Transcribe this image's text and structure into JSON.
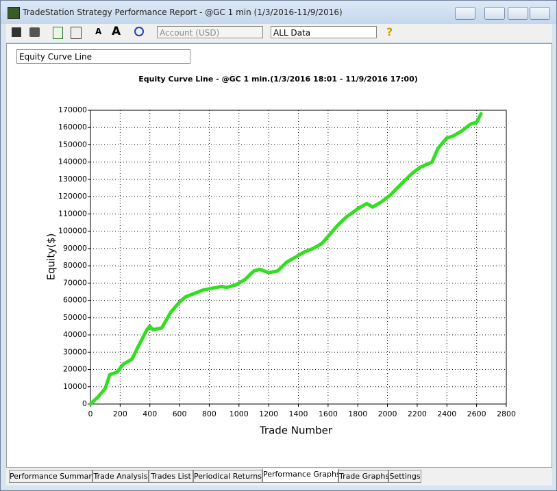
{
  "window": {
    "title": "TradeStation Strategy Performance Report - @GC 1 min (1/3/2016-11/9/2016)"
  },
  "toolbar": {
    "account": "Account (USD)",
    "range": "ALL Data"
  },
  "graph_selector": "Equity Curve Line",
  "tabs": [
    "Performance Summary",
    "Trade Analysis",
    "Trades List",
    "Periodical Returns",
    "Performance Graphs",
    "Trade Graphs",
    "Settings"
  ],
  "active_tab": 4,
  "chart_data": {
    "type": "line",
    "title": "Equity Curve Line - @GC 1 min.(1/3/2016 18:01 - 11/9/2016 17:00)",
    "x_label": "Trade Number",
    "y_label": "Equity($)",
    "x": [
      0,
      50,
      100,
      130,
      180,
      220,
      280,
      320,
      380,
      400,
      420,
      480,
      540,
      600,
      640,
      700,
      760,
      820,
      880,
      920,
      980,
      1040,
      1100,
      1140,
      1200,
      1260,
      1320,
      1400,
      1440,
      1500,
      1560,
      1600,
      1660,
      1720,
      1800,
      1860,
      1900,
      1960,
      2020,
      2100,
      2160,
      2220,
      2300,
      2340,
      2400,
      2440,
      2500,
      2560,
      2600,
      2630
    ],
    "series": [
      {
        "color": "#33dd22",
        "values": [
          0,
          4000,
          9000,
          17000,
          18500,
          23000,
          26000,
          33000,
          43000,
          45000,
          43000,
          44000,
          53000,
          59000,
          62000,
          64000,
          66000,
          67000,
          68000,
          67500,
          69000,
          72000,
          77000,
          78000,
          76000,
          77000,
          82000,
          86000,
          88000,
          90000,
          93000,
          97000,
          103000,
          108000,
          113000,
          116000,
          114000,
          117000,
          121000,
          128000,
          133000,
          137000,
          140000,
          148000,
          154000,
          155000,
          158000,
          162000,
          163000,
          168000
        ]
      }
    ],
    "xlim": [
      0,
      2800
    ],
    "xticks": [
      0,
      200,
      400,
      600,
      800,
      1000,
      1200,
      1400,
      1600,
      1800,
      2000,
      2200,
      2400,
      2600,
      2800
    ],
    "ylim": [
      0,
      170000
    ],
    "yticks": [
      0,
      10000,
      20000,
      30000,
      40000,
      50000,
      60000,
      70000,
      80000,
      90000,
      100000,
      110000,
      120000,
      130000,
      140000,
      150000,
      160000,
      170000
    ],
    "grid": true
  }
}
